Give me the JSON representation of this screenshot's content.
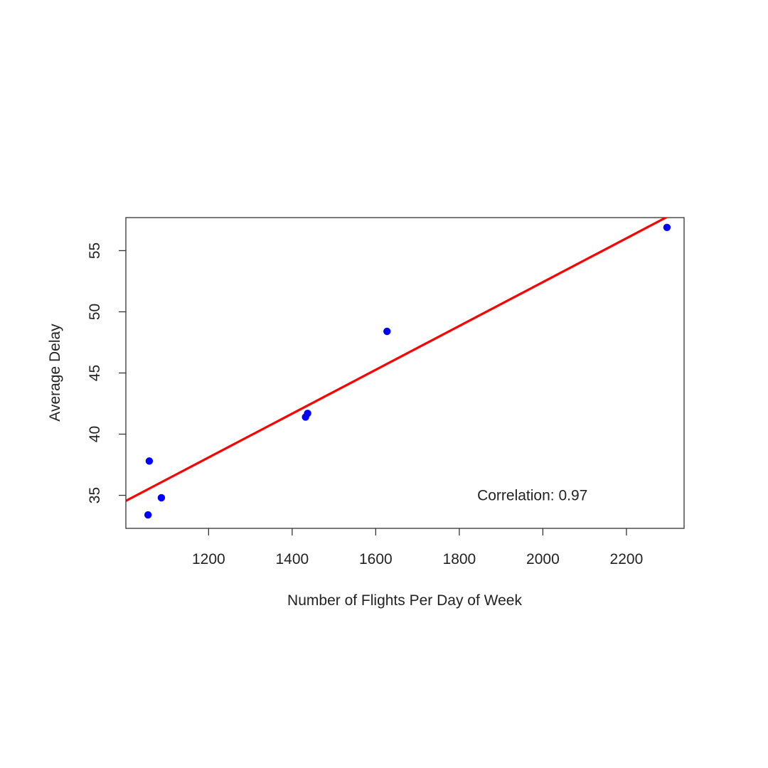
{
  "chart_data": {
    "type": "scatter",
    "title": "",
    "xlabel": "Number of Flights Per Day of Week",
    "ylabel": "Average Delay",
    "xlim": [
      1002,
      2338
    ],
    "ylim": [
      32.3,
      57.7
    ],
    "xticks": [
      1200,
      1400,
      1600,
      1800,
      2000,
      2200
    ],
    "yticks": [
      35,
      40,
      45,
      50,
      55
    ],
    "grid": false,
    "points": [
      {
        "x": 1055,
        "y": 33.4
      },
      {
        "x": 1058,
        "y": 37.8
      },
      {
        "x": 1087,
        "y": 34.8
      },
      {
        "x": 1432,
        "y": 41.4
      },
      {
        "x": 1437,
        "y": 41.7
      },
      {
        "x": 1627,
        "y": 48.4
      },
      {
        "x": 2297,
        "y": 56.9
      }
    ],
    "fit_line": {
      "x0": 1002,
      "y0": 34.55,
      "x1": 2297,
      "y1": 57.75
    },
    "annotation": {
      "text": "Correlation: 0.97",
      "x": 1975,
      "y": 35.0
    },
    "colors": {
      "points": "#0000ff",
      "fit_line": "#ff0000",
      "axis": "#333333"
    }
  }
}
